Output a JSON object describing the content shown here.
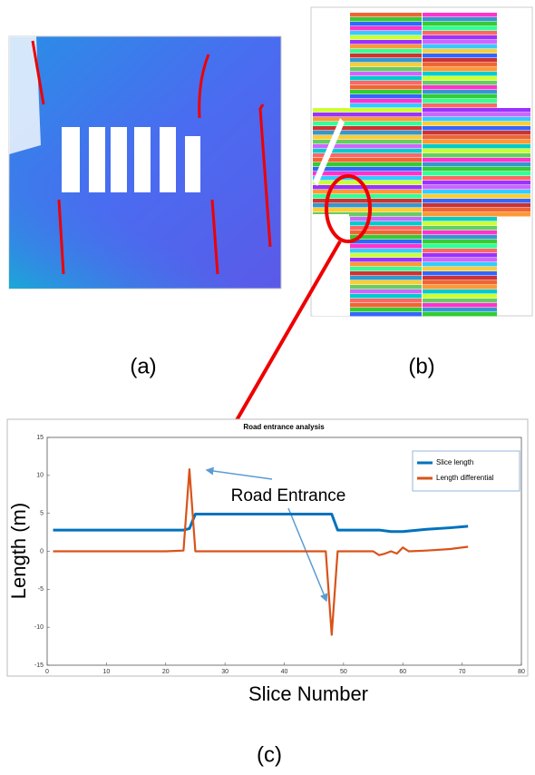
{
  "panel_labels": {
    "a": "(a)",
    "b": "(b)",
    "c": "(c)"
  },
  "chart_data": {
    "type": "line",
    "title": "Road entrance analysis",
    "x_label": "Slice Number",
    "y_label": "Length (m)",
    "annotation": "Road Entrance",
    "xlim": [
      0,
      80
    ],
    "xticks": [
      0,
      10,
      20,
      30,
      40,
      50,
      60,
      70,
      80
    ],
    "ylim": [
      -15,
      15
    ],
    "yticks": [
      -15,
      -10,
      -5,
      0,
      5,
      10,
      15
    ],
    "legend": "top-right",
    "series": [
      {
        "name": "Slice length",
        "color": "#0072bd",
        "x": [
          1,
          23,
          24,
          25,
          48,
          49,
          56,
          58,
          60,
          64,
          68,
          71
        ],
        "values": [
          2.8,
          2.8,
          3.0,
          4.9,
          4.9,
          2.8,
          2.8,
          2.6,
          2.6,
          2.9,
          3.1,
          3.3
        ]
      },
      {
        "name": "Length differential",
        "color": "#d95319",
        "x": [
          1,
          10,
          20,
          23,
          24,
          25,
          47,
          48,
          49,
          55,
          56,
          57,
          58,
          59,
          60,
          61,
          64,
          68,
          71
        ],
        "values": [
          0,
          0,
          0,
          0.1,
          10.8,
          0,
          0,
          -11,
          0,
          0,
          -0.5,
          -0.3,
          0,
          -0.3,
          0.5,
          0,
          0.1,
          0.3,
          0.6
        ]
      }
    ]
  }
}
